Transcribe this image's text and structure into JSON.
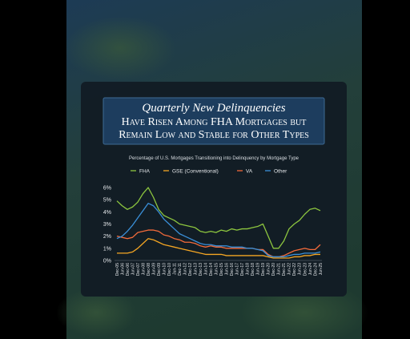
{
  "chart_data": {
    "type": "line",
    "title": "Quarterly New Delinquencies",
    "subtitle_lines": [
      "Have Risen Among FHA Mortgages but",
      "Remain Low and Stable for Other Types"
    ],
    "chart_title": "Percentage of U.S. Mortgages Transitioning into Delinquency by Mortgage Type",
    "categories": [
      "Dec-05",
      "Jun-06",
      "Dec-06",
      "Jun-07",
      "Dec-07",
      "Jun-08",
      "Dec-08",
      "Jun-09",
      "Dec-09",
      "Jun-10",
      "Dec-10",
      "Jun-11",
      "Dec-11",
      "Jun-12",
      "Dec-12",
      "Jun-13",
      "Dec-13",
      "Jun-14",
      "Dec-14",
      "Jun-15",
      "Dec-15",
      "Jun-16",
      "Dec-16",
      "Jun-17",
      "Dec-17",
      "Jun-18",
      "Dec-18",
      "Jun-19",
      "Dec-19",
      "Jun-20",
      "Dec-20",
      "Jun-21",
      "Dec-21",
      "Jun-22",
      "Dec-22",
      "Jun-23",
      "Dec-23",
      "Jun-24",
      "Dec-24",
      "Jun-25"
    ],
    "series": [
      {
        "name": "FHA",
        "color": "#8dc63f",
        "values": [
          4.9,
          4.5,
          4.2,
          4.4,
          4.8,
          5.5,
          6.0,
          5.2,
          4.2,
          3.7,
          3.5,
          3.3,
          3.0,
          2.9,
          2.8,
          2.7,
          2.4,
          2.3,
          2.4,
          2.3,
          2.5,
          2.4,
          2.6,
          2.5,
          2.6,
          2.6,
          2.7,
          2.8,
          3.0,
          2.0,
          1.0,
          1.0,
          1.6,
          2.6,
          3.0,
          3.3,
          3.8,
          4.2,
          4.3,
          4.1
        ]
      },
      {
        "name": "GSE (Conventional)",
        "color": "#f5a623",
        "values": [
          0.6,
          0.6,
          0.6,
          0.7,
          1.0,
          1.4,
          1.8,
          1.7,
          1.5,
          1.3,
          1.2,
          1.1,
          1.0,
          0.9,
          0.8,
          0.7,
          0.6,
          0.5,
          0.5,
          0.5,
          0.5,
          0.4,
          0.4,
          0.4,
          0.4,
          0.4,
          0.4,
          0.4,
          0.4,
          0.3,
          0.2,
          0.2,
          0.2,
          0.2,
          0.3,
          0.3,
          0.4,
          0.4,
          0.5,
          0.5
        ]
      },
      {
        "name": "VA",
        "color": "#f26a3a",
        "values": [
          2.0,
          1.9,
          1.8,
          1.9,
          2.3,
          2.4,
          2.5,
          2.5,
          2.4,
          2.1,
          2.0,
          1.8,
          1.7,
          1.5,
          1.5,
          1.4,
          1.2,
          1.1,
          1.2,
          1.1,
          1.1,
          1.0,
          1.0,
          1.0,
          1.0,
          1.0,
          1.0,
          0.9,
          0.9,
          0.5,
          0.3,
          0.3,
          0.4,
          0.6,
          0.8,
          0.9,
          1.0,
          0.9,
          0.9,
          1.3
        ]
      },
      {
        "name": "Other",
        "color": "#3a8fd8",
        "values": [
          1.8,
          2.0,
          2.4,
          2.9,
          3.5,
          4.1,
          4.7,
          4.5,
          4.0,
          3.4,
          3.0,
          2.6,
          2.2,
          2.0,
          1.8,
          1.6,
          1.4,
          1.3,
          1.3,
          1.2,
          1.2,
          1.2,
          1.1,
          1.1,
          1.1,
          1.0,
          1.0,
          0.9,
          0.8,
          0.4,
          0.3,
          0.3,
          0.3,
          0.4,
          0.5,
          0.5,
          0.6,
          0.6,
          0.6,
          0.7
        ]
      }
    ],
    "ylim": [
      0,
      6.3
    ],
    "yticks": [
      {
        "value": 0,
        "label": "0%"
      },
      {
        "value": 1,
        "label": "1%"
      },
      {
        "value": 2,
        "label": "2%"
      },
      {
        "value": 3,
        "label": "3%"
      },
      {
        "value": 4,
        "label": "4%"
      },
      {
        "value": 5,
        "label": "5%"
      },
      {
        "value": 6,
        "label": "6%"
      }
    ],
    "legend": "top"
  }
}
